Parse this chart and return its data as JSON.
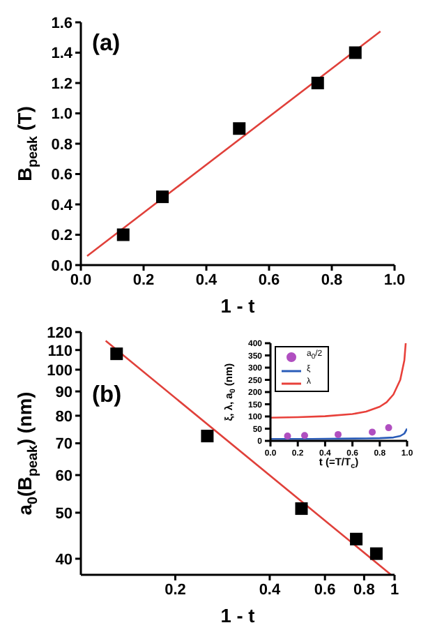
{
  "chart_data": [
    {
      "type": "scatter",
      "xlabel": "1 - t",
      "ylabel": "B$_{peak}$ (T)",
      "annotations": [
        "(a)"
      ],
      "xlim": [
        0,
        1
      ],
      "ylim": [
        0,
        1.6
      ],
      "xticks": [
        {
          "value": 0,
          "label": "0.0"
        },
        {
          "value": 0.2,
          "label": "0.2"
        },
        {
          "value": 0.4,
          "label": "0.4"
        },
        {
          "value": 0.6,
          "label": "0.6"
        },
        {
          "value": 0.8,
          "label": "0.8"
        },
        {
          "value": 1,
          "label": "1.0"
        }
      ],
      "yticks": [
        {
          "value": 0,
          "label": "0.0"
        },
        {
          "value": 0.2,
          "label": "0.2"
        },
        {
          "value": 0.4,
          "label": "0.4"
        },
        {
          "value": 0.6,
          "label": "0.6"
        },
        {
          "value": 0.8,
          "label": "0.8"
        },
        {
          "value": 1,
          "label": "1.0"
        },
        {
          "value": 1.2,
          "label": "1.2"
        },
        {
          "value": 1.4,
          "label": "1.4"
        },
        {
          "value": 1.6,
          "label": "1.6"
        }
      ],
      "grid": false,
      "legend": false,
      "marker": "square",
      "series": [
        {
          "color": "#000000",
          "x": [
            0.135,
            0.26,
            0.505,
            0.755,
            0.875
          ],
          "values": [
            0.2,
            0.45,
            0.9,
            1.2,
            1.4
          ]
        },
        {
          "type": "line",
          "color": "#e0403a",
          "x": [
            0.02,
            0.955
          ],
          "values": [
            0.06,
            1.54
          ],
          "marker": "none",
          "line_style": "solid"
        }
      ]
    },
    {
      "type": "scatter",
      "xlabel": "1 - t",
      "ylabel": "a$_{0}$(B$_{peak}$) (nm)",
      "annotations": [
        "(b)"
      ],
      "log": "xy",
      "xlim": [
        0.1,
        1
      ],
      "ylim": [
        37,
        120
      ],
      "xticks": [
        0.2,
        0.4,
        0.6,
        0.8,
        1
      ],
      "yticks": [
        40,
        50,
        60,
        70,
        80,
        90,
        100,
        110,
        120
      ],
      "grid": false,
      "legend": false,
      "marker": "square",
      "series": [
        {
          "color": "#000000",
          "x": [
            0.13,
            0.253,
            0.505,
            0.755,
            0.875
          ],
          "values": [
            108,
            72.5,
            51,
            44,
            41
          ]
        },
        {
          "type": "line",
          "color": "#e0403a",
          "x": [
            0.12,
            0.975
          ],
          "values": [
            115,
            37
          ],
          "marker": "none",
          "line_style": "solid"
        }
      ]
    },
    {
      "type": "line",
      "xlabel": "t (=T/T$_{c}$)",
      "ylabel": "ξ, λ, a$_{0}$ (nm)",
      "xlim": [
        0,
        1
      ],
      "ylim": [
        0,
        400
      ],
      "xticks": [
        {
          "value": 0,
          "label": "0.0"
        },
        {
          "value": 0.2,
          "label": "0.2"
        },
        {
          "value": 0.4,
          "label": "0.4"
        },
        {
          "value": 0.6,
          "label": "0.6"
        },
        {
          "value": 0.8,
          "label": "0.8"
        },
        {
          "value": 1,
          "label": "1.0"
        }
      ],
      "yticks": [
        0,
        50,
        100,
        150,
        200,
        250,
        300,
        350,
        400
      ],
      "grid": false,
      "legend": "top left",
      "series": [
        {
          "type": "scatter",
          "name": "a$_{0}$/2",
          "color": "#b04fc0",
          "marker": "circle",
          "x": [
            0.125,
            0.25,
            0.495,
            0.745,
            0.865
          ],
          "values": [
            20,
            22,
            26,
            36,
            54
          ]
        },
        {
          "name": "ξ",
          "color": "#2a5cb8",
          "marker": "none",
          "line_style": "solid",
          "x": [
            0,
            0.3,
            0.5,
            0.7,
            0.8,
            0.9,
            0.95,
            0.98,
            0.99,
            1
          ],
          "values": [
            8,
            8,
            9,
            10,
            11,
            14,
            20,
            30,
            40,
            50
          ]
        },
        {
          "name": "λ",
          "color": "#e8403a",
          "marker": "none",
          "line_style": "solid",
          "x": [
            0,
            0.2,
            0.4,
            0.6,
            0.7,
            0.8,
            0.85,
            0.9,
            0.95,
            0.98,
            0.99
          ],
          "values": [
            95,
            97,
            101,
            110,
            120,
            140,
            158,
            190,
            250,
            330,
            400
          ]
        }
      ]
    }
  ]
}
